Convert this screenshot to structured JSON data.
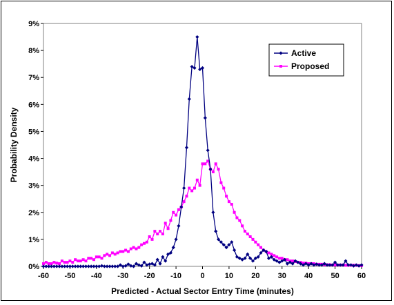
{
  "chart_data": {
    "type": "line",
    "xlabel": "Predicted - Actual Sector Entry Time (minutes)",
    "ylabel": "Probability Density",
    "xlim": [
      -60,
      60
    ],
    "ylim": [
      0,
      9
    ],
    "x_ticks": [
      "-60",
      "-50",
      "-40",
      "-30",
      "-20",
      "-10",
      "0",
      "10",
      "20",
      "30",
      "40",
      "50",
      "60"
    ],
    "y_ticks": [
      "0%",
      "1%",
      "2%",
      "3%",
      "4%",
      "5%",
      "6%",
      "7%",
      "8%",
      "9%"
    ],
    "y_unit": "%",
    "grid": false,
    "legend_position": "top-right",
    "series": [
      {
        "name": "Active",
        "color": "#000080",
        "marker": "diamond",
        "x": [
          -60,
          -59,
          -58,
          -57,
          -56,
          -55,
          -54,
          -53,
          -52,
          -51,
          -50,
          -49,
          -48,
          -47,
          -46,
          -45,
          -44,
          -43,
          -42,
          -41,
          -40,
          -39,
          -38,
          -37,
          -36,
          -35,
          -34,
          -33,
          -32,
          -31,
          -30,
          -29,
          -28,
          -27,
          -26,
          -25,
          -24,
          -23,
          -22,
          -21,
          -20,
          -19,
          -18,
          -17,
          -16,
          -15,
          -14,
          -13,
          -12,
          -11,
          -10,
          -9,
          -8,
          -7,
          -6,
          -5,
          -4,
          -3,
          -2,
          -1,
          0,
          1,
          2,
          3,
          4,
          5,
          6,
          7,
          8,
          9,
          10,
          11,
          12,
          13,
          14,
          15,
          16,
          17,
          18,
          19,
          20,
          21,
          22,
          23,
          24,
          25,
          26,
          27,
          28,
          29,
          30,
          31,
          32,
          33,
          34,
          35,
          36,
          37,
          38,
          39,
          40,
          41,
          42,
          43,
          44,
          45,
          46,
          47,
          48,
          49,
          50,
          51,
          52,
          53,
          54,
          55,
          56,
          57,
          58,
          59,
          60
        ],
        "values": [
          0,
          0,
          0,
          0,
          0,
          0,
          0,
          0,
          0,
          0,
          0,
          0,
          0,
          0,
          0,
          0,
          0,
          0,
          0,
          0,
          0,
          0,
          0.02,
          0,
          0,
          0,
          0,
          0,
          0,
          0.05,
          0,
          0.02,
          0.08,
          0.02,
          0,
          0.1,
          0.05,
          0.02,
          0.15,
          0.05,
          0.08,
          0.1,
          0.05,
          0.25,
          0.1,
          0.35,
          0.2,
          0.45,
          0.5,
          0.7,
          1.0,
          1.5,
          2.2,
          2.9,
          4.4,
          6.2,
          7.4,
          7.35,
          8.5,
          7.3,
          7.35,
          5.5,
          4.3,
          3.6,
          2.0,
          1.3,
          1.0,
          0.9,
          0.8,
          0.7,
          0.8,
          0.9,
          0.6,
          0.35,
          0.3,
          0.25,
          0.3,
          0.45,
          0.3,
          0.2,
          0.3,
          0.35,
          0.5,
          0.6,
          0.55,
          0.3,
          0.35,
          0.25,
          0.2,
          0.15,
          0.2,
          0.25,
          0.1,
          0.15,
          0.1,
          0.2,
          0.15,
          0.1,
          0.05,
          0.1,
          0.05,
          0.1,
          0.05,
          0.08,
          0.05,
          0.05,
          0.1,
          0.05,
          0.05,
          0.05,
          0.15,
          0.05,
          0.05,
          0.05,
          0.2,
          0.05,
          0.05,
          0.02,
          0.05,
          0.02,
          0.05
        ]
      },
      {
        "name": "Proposed",
        "color": "#FF00FF",
        "marker": "square",
        "x": [
          -60,
          -59,
          -58,
          -57,
          -56,
          -55,
          -54,
          -53,
          -52,
          -51,
          -50,
          -49,
          -48,
          -47,
          -46,
          -45,
          -44,
          -43,
          -42,
          -41,
          -40,
          -39,
          -38,
          -37,
          -36,
          -35,
          -34,
          -33,
          -32,
          -31,
          -30,
          -29,
          -28,
          -27,
          -26,
          -25,
          -24,
          -23,
          -22,
          -21,
          -20,
          -19,
          -18,
          -17,
          -16,
          -15,
          -14,
          -13,
          -12,
          -11,
          -10,
          -9,
          -8,
          -7,
          -6,
          -5,
          -4,
          -3,
          -2,
          -1,
          0,
          1,
          2,
          3,
          4,
          5,
          6,
          7,
          8,
          9,
          10,
          11,
          12,
          13,
          14,
          15,
          16,
          17,
          18,
          19,
          20,
          21,
          22,
          23,
          24,
          25,
          26,
          27,
          28,
          29,
          30,
          31,
          32,
          33,
          34,
          35,
          36,
          37,
          38,
          39,
          40,
          41,
          42,
          43,
          44,
          45,
          46,
          47,
          48,
          49,
          50,
          51,
          52,
          53,
          54,
          55,
          56,
          57,
          58,
          59,
          60
        ],
        "values": [
          0.1,
          0.15,
          0.1,
          0.1,
          0.15,
          0.12,
          0.1,
          0.2,
          0.15,
          0.15,
          0.2,
          0.15,
          0.25,
          0.2,
          0.2,
          0.25,
          0.2,
          0.3,
          0.3,
          0.25,
          0.35,
          0.35,
          0.3,
          0.4,
          0.45,
          0.4,
          0.5,
          0.45,
          0.5,
          0.55,
          0.55,
          0.6,
          0.55,
          0.65,
          0.7,
          0.65,
          0.7,
          0.8,
          0.85,
          0.9,
          1.1,
          1.0,
          1.3,
          1.2,
          1.3,
          1.2,
          1.6,
          1.4,
          1.7,
          2.0,
          1.9,
          2.1,
          2.2,
          2.4,
          2.6,
          2.9,
          2.8,
          2.9,
          3.2,
          3.0,
          3.8,
          3.8,
          3.9,
          3.6,
          3.5,
          3.8,
          3.6,
          3.1,
          2.9,
          2.6,
          2.4,
          2.3,
          2.0,
          1.8,
          1.7,
          1.5,
          1.3,
          1.2,
          1.1,
          1.0,
          0.9,
          0.8,
          0.7,
          0.6,
          0.55,
          0.5,
          0.45,
          0.4,
          0.35,
          0.3,
          0.3,
          0.25,
          0.25,
          0.2,
          0.2,
          0.18,
          0.15,
          0.15,
          0.12,
          0.12,
          0.1,
          0.1,
          0.1,
          0.08,
          0.08,
          0.08,
          0.06,
          0.06,
          0.06,
          0.05,
          0.05,
          0.05,
          0.05,
          0.05,
          0.04,
          0.04,
          0.04,
          0.04,
          0.04,
          0.03,
          0.03
        ]
      }
    ]
  }
}
